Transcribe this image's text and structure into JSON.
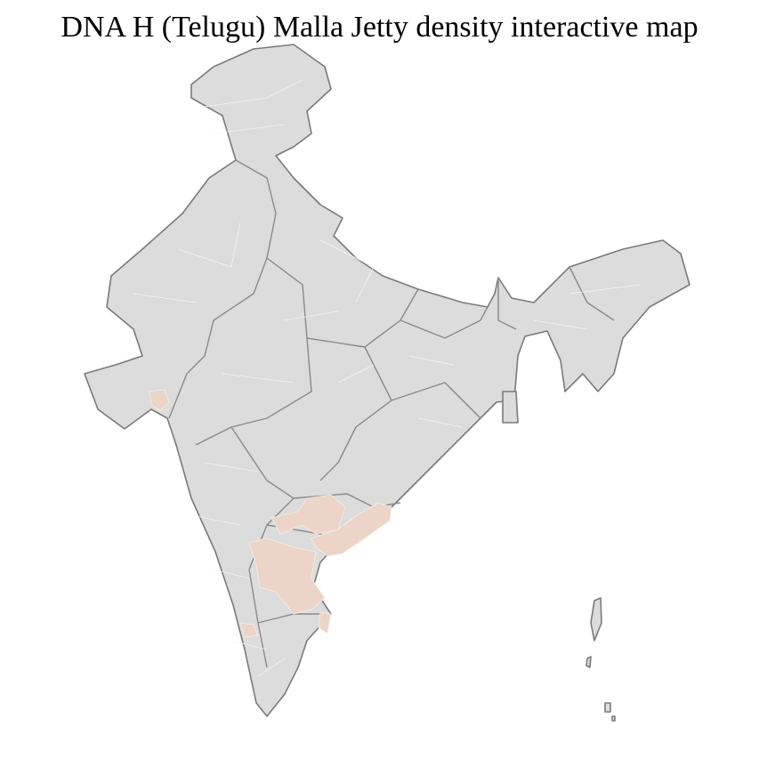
{
  "title": "DNA H (Telugu) Malla Jetty density interactive map",
  "colors": {
    "no_data": "#dcdcdc",
    "density_low": "#ecd4c8",
    "state_border": "#7a7a7a",
    "district_border": "#f4f4f4"
  }
}
